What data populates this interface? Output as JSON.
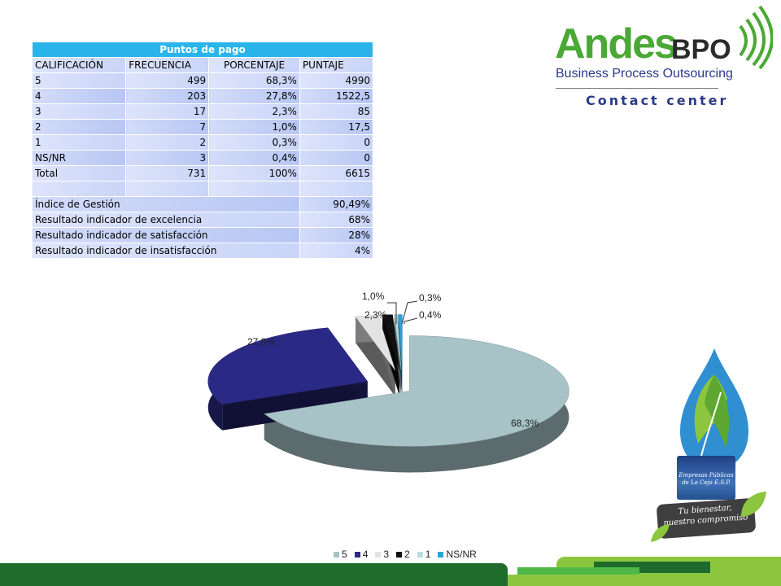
{
  "table": {
    "title": "Puntos de pago",
    "headers": [
      "CALIFICACIÓN",
      "FRECUENCIA",
      "PORCENTAJE",
      "PUNTAJE"
    ],
    "rows": [
      {
        "calificacion": "5",
        "frecuencia": "499",
        "porcentaje": "68,3%",
        "puntaje": "4990"
      },
      {
        "calificacion": "4",
        "frecuencia": "203",
        "porcentaje": "27,8%",
        "puntaje": "1522,5"
      },
      {
        "calificacion": "3",
        "frecuencia": "17",
        "porcentaje": "2,3%",
        "puntaje": "85"
      },
      {
        "calificacion": "2",
        "frecuencia": "7",
        "porcentaje": "1,0%",
        "puntaje": "17,5"
      },
      {
        "calificacion": "1",
        "frecuencia": "2",
        "porcentaje": "0,3%",
        "puntaje": "0"
      },
      {
        "calificacion": "NS/NR",
        "frecuencia": "3",
        "porcentaje": "0,4%",
        "puntaje": "0"
      },
      {
        "calificacion": "Total",
        "frecuencia": "731",
        "porcentaje": "100%",
        "puntaje": "6615"
      }
    ],
    "indicators": [
      {
        "label": "Índice de Gestión",
        "value": "90,49%"
      },
      {
        "label": "Resultado indicador de excelencia",
        "value": "68%"
      },
      {
        "label": "Resultado indicador de satisfacción",
        "value": "28%"
      },
      {
        "label": "Resultado indicador de insatisfacción",
        "value": "4%"
      }
    ]
  },
  "logo": {
    "brand": "Andes",
    "brand_suffix": "BPO",
    "subtitle": "Business Process Outsourcing",
    "tagline": "Contact center"
  },
  "epc_badge": {
    "name_line1": "Empresas Públicas",
    "name_line2": "de La Ceja E.S.P.",
    "slogan_line1": "Tu bienestar,",
    "slogan_line2": "nuestro compromiso"
  },
  "chart_data": {
    "type": "pie",
    "style": "3d-exploded",
    "categories": [
      "5",
      "4",
      "3",
      "2",
      "1",
      "NS/NR"
    ],
    "values": [
      68.3,
      27.8,
      2.3,
      1.0,
      0.3,
      0.4
    ],
    "data_labels": [
      "68,3%",
      "27,8%",
      "2,3%",
      "1,0%",
      "0,3%",
      "0,4%"
    ],
    "colors": [
      "#a7c3c8",
      "#2a2a86",
      "#e3e3e3",
      "#111111",
      "#b7dde3",
      "#2aa3d8"
    ],
    "legend_position": "bottom"
  },
  "colors": {
    "table_title_bg": "#2ab5ea",
    "table_cell_bg": "#cdd8f8",
    "brand_green": "#4aa935",
    "brand_navy": "#2b3a8a",
    "footer_dark_green": "#1e6b2b",
    "footer_light_green": "#8cc63f"
  }
}
